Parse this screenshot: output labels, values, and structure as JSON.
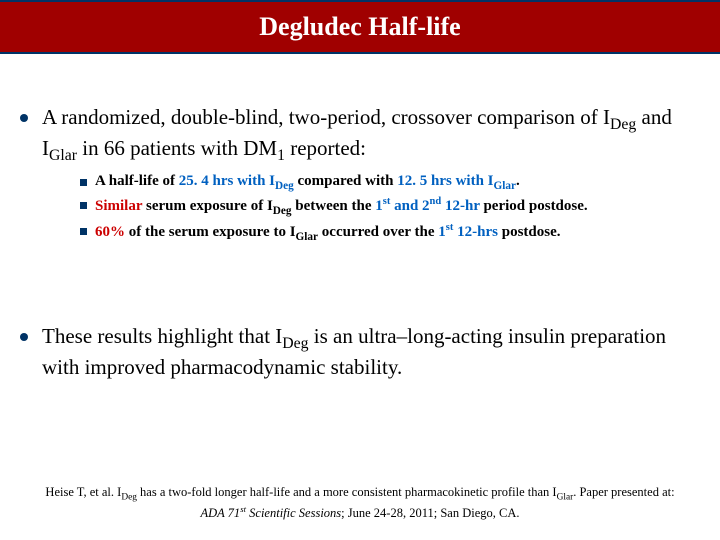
{
  "title": "Degludec Half-life",
  "mainBullet1_html": "A randomized, double-blind, two-period, crossover comparison of I<sub>Deg</sub> and I<sub>Glar</sub> in 66 patients with DM<sub>1</sub> reported:",
  "sub1_html": "A half-life of <span class='blue'>25. 4 hrs with I<sub>Deg</sub></span> compared with <span class='blue'>12. 5 hrs with I<sub>Glar</sub></span>.",
  "sub2_html": "<span class='red'>Similar</span> serum exposure of I<sub>Deg</sub> between the <span class='blue'>1<sup>st</sup> and 2<sup>nd</sup> 12-hr</span> period postdose.",
  "sub3_html": "<span class='red'>60%</span> of the serum exposure to I<sub>Glar</sub> occurred over the <span class='blue'>1<sup>st</sup> 12-hrs</span> postdose.",
  "mainBullet2_html": "These results highlight that I<sub>Deg</sub> is an ultra–long-acting insulin preparation with improved pharmacodynamic stability.",
  "ref_line1_html": "Heise T, et al. I<sub>Deg</sub> has a two-fold longer half-life and a more consistent pharmacokinetic profile than I<sub>Glar</sub>. Paper presented at:",
  "ref_line2_html": "ADA 71<sup>st</sup> Scientific Sessions<span class='upright'>; June 24-28, 2011; San Diego, CA.</span>",
  "colors": {
    "title_bg": "#a00000",
    "border": "#003366",
    "bullet": "#003366",
    "blue_text": "#0060c0",
    "red_text": "#cc0000",
    "background": "#ffffff"
  }
}
